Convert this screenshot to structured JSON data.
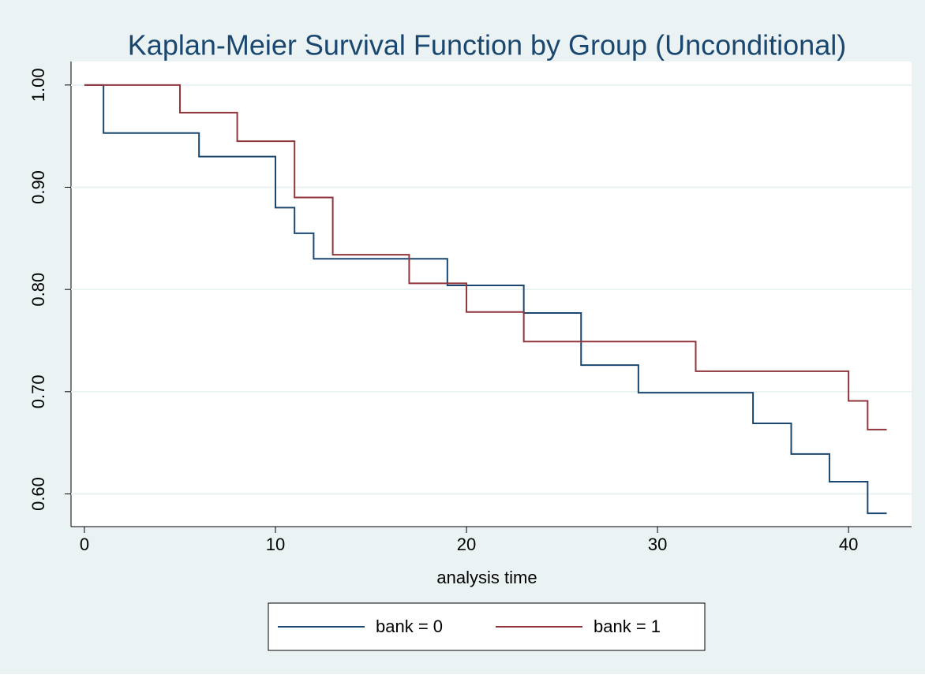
{
  "chart_data": {
    "type": "line",
    "step": "post",
    "title": "Kaplan-Meier Survival Function by Group (Unconditional)",
    "x_label": "analysis time",
    "series": [
      {
        "name": "bank = 0",
        "color": "#1a476f",
        "x": [
          0,
          1,
          6,
          10,
          11,
          12,
          19,
          23,
          26,
          29,
          35,
          37,
          39,
          41,
          42
        ],
        "values": [
          1.0,
          0.953,
          0.93,
          0.88,
          0.855,
          0.83,
          0.804,
          0.777,
          0.726,
          0.699,
          0.669,
          0.639,
          0.612,
          0.581,
          0.581
        ]
      },
      {
        "name": "bank = 1",
        "color": "#90353b",
        "x": [
          0,
          5,
          8,
          11,
          13,
          17,
          20,
          23,
          32,
          40,
          41,
          42
        ],
        "values": [
          1.0,
          0.973,
          0.945,
          0.89,
          0.834,
          0.806,
          0.778,
          0.749,
          0.72,
          0.691,
          0.663,
          0.663
        ]
      }
    ],
    "xlim": [
      -0.7,
      43.3
    ],
    "ylim": [
      0.568,
      1.023
    ],
    "xticks": [
      0,
      10,
      20,
      30,
      40
    ],
    "yticks": [
      {
        "value": 0.6,
        "label": "0.60"
      },
      {
        "value": 0.7,
        "label": "0.70"
      },
      {
        "value": 0.8,
        "label": "0.80"
      },
      {
        "value": 0.9,
        "label": "0.90"
      },
      {
        "value": 1.0,
        "label": "1.00"
      }
    ],
    "grid": true,
    "legend": "bottom"
  }
}
